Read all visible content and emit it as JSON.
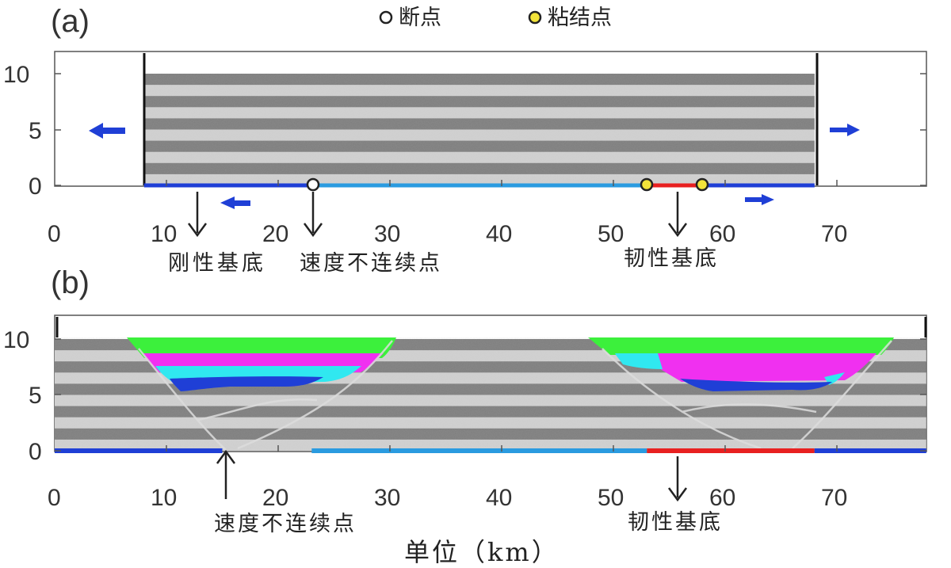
{
  "legend": {
    "items": [
      {
        "label": "断点",
        "fill": "#ffffff",
        "stroke": "#222222"
      },
      {
        "label": "粘结点",
        "fill": "#f2e33a",
        "stroke": "#222222"
      }
    ]
  },
  "panels": [
    {
      "label": "(a)",
      "x_ticks": [
        "0",
        "10",
        "20",
        "30",
        "40",
        "50",
        "60",
        "70"
      ],
      "y_ticks": [
        "0",
        "5",
        "10"
      ],
      "annotations": [
        "刚性基底",
        "速度不连续点",
        "韧性基底"
      ]
    },
    {
      "label": "(b)",
      "x_ticks": [
        "0",
        "10",
        "20",
        "30",
        "40",
        "50",
        "60",
        "70"
      ],
      "y_ticks": [
        "0",
        "5",
        "10"
      ],
      "annotations": [
        "速度不连续点",
        "韧性基底"
      ]
    }
  ],
  "xlabel": "单位（km）",
  "model": {
    "x_range_km": [
      0,
      78
    ],
    "y_range_km": [
      0,
      12
    ],
    "a": {
      "block_x_km": [
        8,
        68
      ],
      "top_km": 10,
      "layer_count": 10,
      "breakpoint_km": 23.5,
      "bond_points_km": [
        53,
        58
      ],
      "segments": [
        {
          "from_km": 8,
          "to_km": 23.5,
          "color": "#1f3fd6"
        },
        {
          "from_km": 23.5,
          "to_km": 53,
          "color": "#2a9be0"
        },
        {
          "from_km": 53,
          "to_km": 58,
          "color": "#e82020"
        },
        {
          "from_km": 58,
          "to_km": 68,
          "color": "#1f3fd6"
        }
      ]
    },
    "b": {
      "top_km": 10,
      "layer_count": 10,
      "segments": [
        {
          "from_km": 0,
          "to_km": 15,
          "color": "#1f3fd6"
        },
        {
          "from_km": 23,
          "to_km": 53,
          "color": "#2a9be0"
        },
        {
          "from_km": 53,
          "to_km": 68,
          "color": "#e82020"
        },
        {
          "from_km": 68,
          "to_km": 78,
          "color": "#1f3fd6"
        }
      ],
      "fill_colors": {
        "green": "#3cf03c",
        "magenta": "#f030f0",
        "cyan": "#30e8f0",
        "blue": "#1f3fd6"
      }
    },
    "layer_colors": [
      "#7d7d7d",
      "#d2d2d2"
    ]
  }
}
